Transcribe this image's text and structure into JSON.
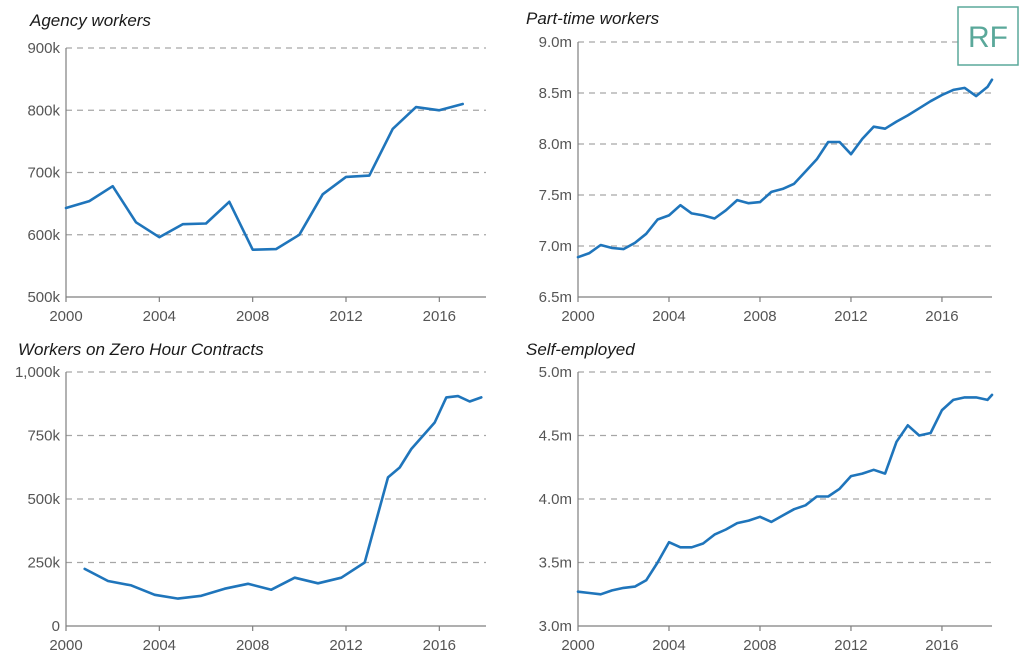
{
  "logo": {
    "text": "RF"
  },
  "colors": {
    "series": "#1f75bb",
    "grid": "#a6a6a6",
    "axis": "#7f7f7f",
    "logo": "#5aa89a"
  },
  "chart_data": [
    {
      "type": "line",
      "title": "Agency workers",
      "ylim": [
        500000,
        900000
      ],
      "yticks": [
        500000,
        600000,
        700000,
        800000,
        900000
      ],
      "ytick_labels": [
        "500k",
        "600k",
        "700k",
        "800k",
        "900k"
      ],
      "xlim": [
        2000,
        2018
      ],
      "xticks": [
        2000,
        2004,
        2008,
        2012,
        2016
      ],
      "xtick_labels": [
        "2000",
        "2004",
        "2008",
        "2012",
        "2016"
      ],
      "grid": true,
      "series": [
        {
          "x": [
            2000,
            2001,
            2002,
            2003,
            2004,
            2005,
            2006,
            2007,
            2008,
            2009,
            2010,
            2011,
            2012,
            2013,
            2014,
            2015,
            2016,
            2017
          ],
          "values": [
            643000,
            654000,
            678000,
            620000,
            596000,
            617000,
            618000,
            653000,
            576000,
            577000,
            600000,
            665000,
            693000,
            695000,
            770000,
            805000,
            800000,
            810000
          ]
        }
      ]
    },
    {
      "type": "line",
      "title": "Part-time workers",
      "ylim": [
        6.5,
        9.0
      ],
      "yticks": [
        6.5,
        7.0,
        7.5,
        8.0,
        8.5,
        9.0
      ],
      "ytick_labels": [
        "6.5m",
        "7.0m",
        "7.5m",
        "8.0m",
        "8.5m",
        "9.0m"
      ],
      "xlim": [
        2000,
        2018.2
      ],
      "xticks": [
        2000,
        2004,
        2008,
        2012,
        2016
      ],
      "xtick_labels": [
        "2000",
        "2004",
        "2008",
        "2012",
        "2016"
      ],
      "grid": true,
      "series": [
        {
          "x": [
            2000,
            2000.5,
            2001,
            2001.5,
            2002,
            2002.5,
            2003,
            2003.5,
            2004,
            2004.5,
            2005,
            2005.5,
            2006,
            2006.5,
            2007,
            2007.5,
            2008,
            2008.5,
            2009,
            2009.5,
            2010,
            2010.5,
            2011,
            2011.5,
            2012,
            2012.5,
            2013,
            2013.5,
            2014,
            2014.5,
            2015,
            2015.5,
            2016,
            2016.5,
            2017,
            2017.5,
            2018,
            2018.2
          ],
          "values": [
            6.89,
            6.93,
            7.01,
            6.98,
            6.97,
            7.03,
            7.12,
            7.26,
            7.3,
            7.4,
            7.32,
            7.3,
            7.27,
            7.35,
            7.45,
            7.42,
            7.43,
            7.53,
            7.56,
            7.61,
            7.73,
            7.85,
            8.02,
            8.02,
            7.9,
            8.05,
            8.17,
            8.15,
            8.22,
            8.28,
            8.35,
            8.42,
            8.48,
            8.53,
            8.55,
            8.47,
            8.56,
            8.63
          ]
        }
      ]
    },
    {
      "type": "line",
      "title": "Workers on Zero Hour Contracts",
      "ylim": [
        0,
        1000000
      ],
      "yticks": [
        0,
        250000,
        500000,
        750000,
        1000000
      ],
      "ytick_labels": [
        "0",
        "250k",
        "500k",
        "750k",
        "1,000k"
      ],
      "xlim": [
        2000,
        2018
      ],
      "xticks": [
        2000,
        2004,
        2008,
        2012,
        2016
      ],
      "xtick_labels": [
        "2000",
        "2004",
        "2008",
        "2012",
        "2016"
      ],
      "grid": true,
      "series": [
        {
          "x": [
            2000.8,
            2001.8,
            2002.8,
            2003.8,
            2004.8,
            2005.8,
            2006.8,
            2007.8,
            2008.8,
            2009.8,
            2010.8,
            2011.8,
            2012.8,
            2013.8,
            2014.3,
            2014.8,
            2015.8,
            2016.3,
            2016.8,
            2017.3,
            2017.8
          ],
          "values": [
            225000,
            177000,
            160000,
            123000,
            108000,
            119000,
            147000,
            166000,
            143000,
            190000,
            168000,
            190000,
            250000,
            585000,
            624000,
            697000,
            801000,
            900000,
            905000,
            884000,
            900000
          ]
        }
      ]
    },
    {
      "type": "line",
      "title": "Self-employed",
      "ylim": [
        3.0,
        5.0
      ],
      "yticks": [
        3.0,
        3.5,
        4.0,
        4.5,
        5.0
      ],
      "ytick_labels": [
        "3.0m",
        "3.5m",
        "4.0m",
        "4.5m",
        "5.0m"
      ],
      "xlim": [
        2000,
        2018.2
      ],
      "xticks": [
        2000,
        2004,
        2008,
        2012,
        2016
      ],
      "xtick_labels": [
        "2000",
        "2004",
        "2008",
        "2012",
        "2016"
      ],
      "grid": true,
      "series": [
        {
          "x": [
            2000,
            2000.5,
            2001,
            2001.5,
            2002,
            2002.5,
            2003,
            2003.5,
            2004,
            2004.5,
            2005,
            2005.5,
            2006,
            2006.5,
            2007,
            2007.5,
            2008,
            2008.5,
            2009,
            2009.5,
            2010,
            2010.5,
            2011,
            2011.5,
            2012,
            2012.5,
            2013,
            2013.5,
            2014,
            2014.5,
            2015,
            2015.5,
            2016,
            2016.5,
            2017,
            2017.5,
            2018,
            2018.2
          ],
          "values": [
            3.27,
            3.26,
            3.25,
            3.28,
            3.3,
            3.31,
            3.36,
            3.5,
            3.66,
            3.62,
            3.62,
            3.65,
            3.72,
            3.76,
            3.81,
            3.83,
            3.86,
            3.82,
            3.87,
            3.92,
            3.95,
            4.02,
            4.02,
            4.08,
            4.18,
            4.2,
            4.23,
            4.2,
            4.45,
            4.58,
            4.5,
            4.52,
            4.7,
            4.78,
            4.8,
            4.8,
            4.78,
            4.82
          ]
        }
      ]
    }
  ]
}
